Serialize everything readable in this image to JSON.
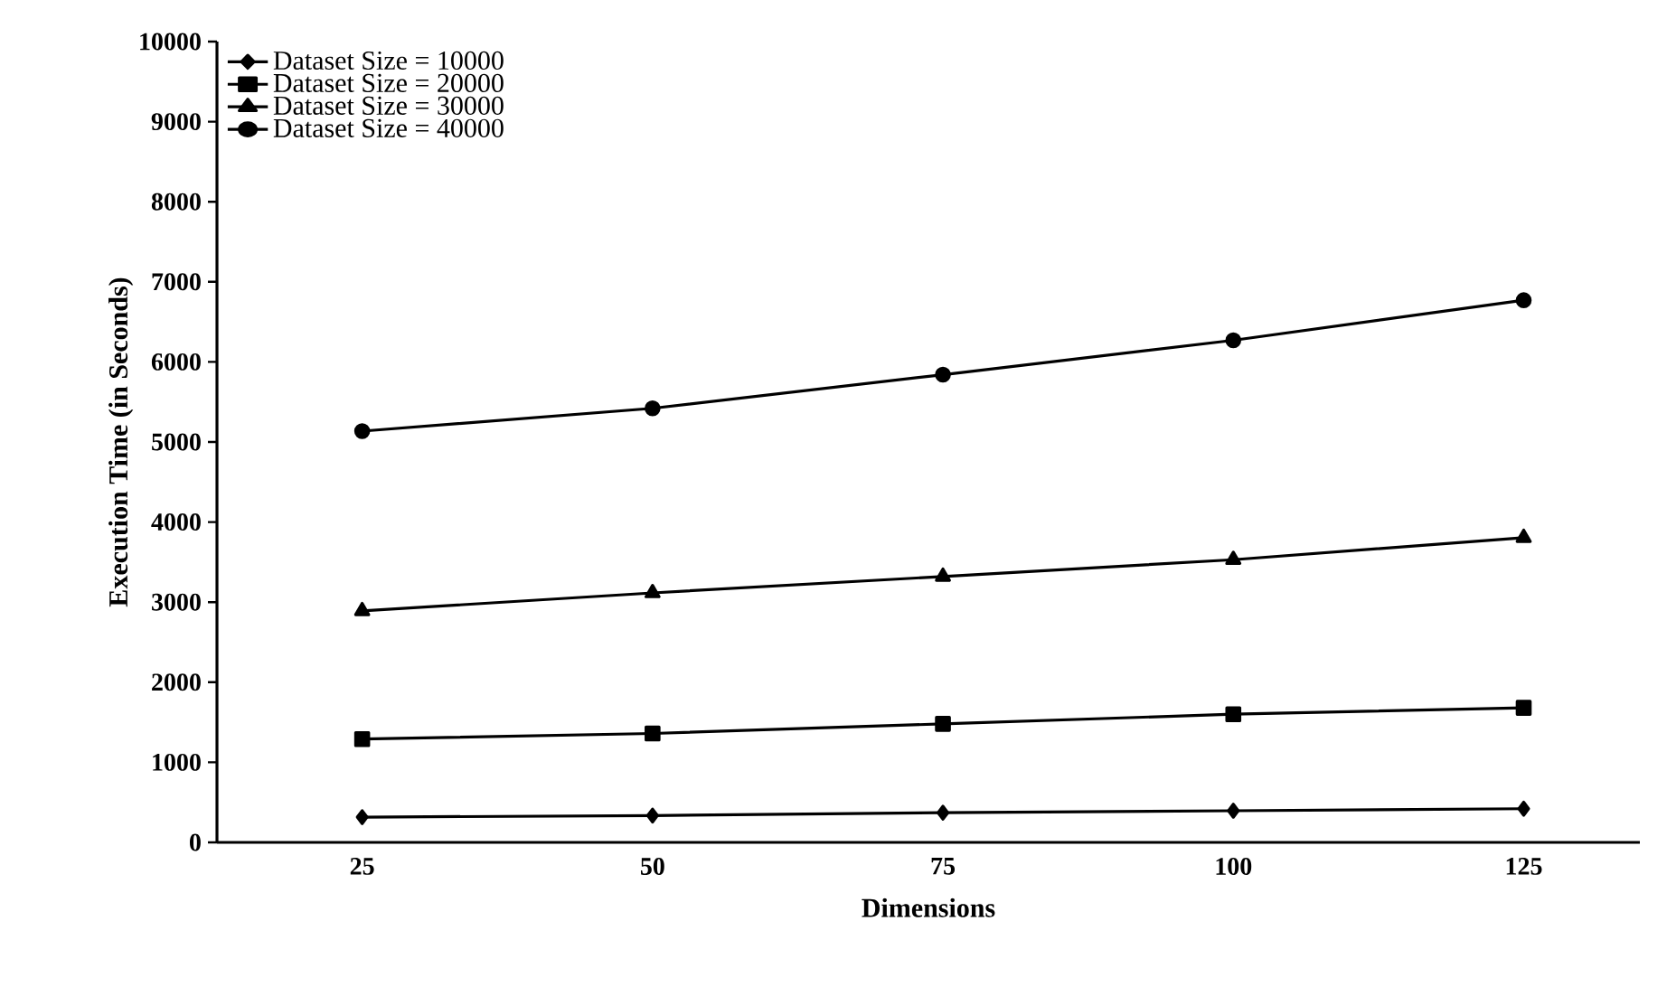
{
  "chart_data": {
    "type": "line",
    "xlabel": "Dimensions",
    "ylabel": "Execution Time (in Seconds)",
    "categories": [
      "25",
      "50",
      "75",
      "100",
      "125"
    ],
    "series": [
      {
        "name": "Dataset Size = 10000",
        "color": "#000000",
        "marker": "diamond",
        "values": [
          315,
          335,
          370,
          395,
          420
        ]
      },
      {
        "name": "Dataset Size = 20000",
        "color": "#000000",
        "marker": "square",
        "values": [
          1290,
          1360,
          1480,
          1600,
          1680
        ]
      },
      {
        "name": "Dataset Size = 30000",
        "color": "#000000",
        "marker": "triangle",
        "values": [
          2890,
          3115,
          3320,
          3530,
          3805
        ]
      },
      {
        "name": "Dataset Size = 40000",
        "color": "#000000",
        "marker": "circle",
        "values": [
          5135,
          5420,
          5840,
          6270,
          6770
        ]
      }
    ],
    "ylim": [
      0,
      10000
    ],
    "yticks": [
      0,
      1000,
      2000,
      3000,
      4000,
      5000,
      6000,
      7000,
      8000,
      9000,
      10000
    ],
    "grid": false,
    "legend": "top left",
    "line_style": "solid"
  }
}
